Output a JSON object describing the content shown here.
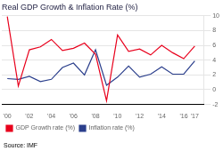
{
  "chart_data": {
    "type": "line",
    "title": "Real GDP Growth & Inflation Rate (%)",
    "x": [
      2000,
      2001,
      2002,
      2003,
      2004,
      2005,
      2006,
      2007,
      2008,
      2009,
      2010,
      2011,
      2012,
      2013,
      2014,
      2015,
      2016,
      2017
    ],
    "series": [
      {
        "name": "GDP Growth rate (%)",
        "color": "#e8001c",
        "values": [
          9.9,
          0.5,
          5.4,
          5.8,
          6.8,
          5.3,
          5.6,
          6.3,
          4.8,
          -1.5,
          7.4,
          5.2,
          5.5,
          4.7,
          6.0,
          5.0,
          4.2,
          5.9
        ]
      },
      {
        "name": "Inflation rate (%)",
        "color": "#2b3f8c",
        "values": [
          1.5,
          1.4,
          1.8,
          1.1,
          1.4,
          3.0,
          3.6,
          2.0,
          5.4,
          0.6,
          1.7,
          3.2,
          1.7,
          2.1,
          3.1,
          2.1,
          2.1,
          3.9
        ]
      }
    ],
    "xlim": [
      1999.5,
      2017.8
    ],
    "xticks": [
      {
        "value": 2000,
        "label": "'00"
      },
      {
        "value": 2002,
        "label": "'02"
      },
      {
        "value": 2004,
        "label": "'04"
      },
      {
        "value": 2006,
        "label": "'06"
      },
      {
        "value": 2008,
        "label": "'08"
      },
      {
        "value": 2010,
        "label": "'10"
      },
      {
        "value": 2012,
        "label": "'12"
      },
      {
        "value": 2014,
        "label": "'14"
      },
      {
        "value": 2016,
        "label": "'16"
      },
      {
        "value": 2017,
        "label": "'17"
      }
    ],
    "ylim": [
      -2,
      10
    ],
    "yticks": [
      -2,
      0,
      2,
      4,
      6,
      8,
      10
    ],
    "grid": "y",
    "legend": "lower left",
    "annotations": [
      "Source: IMF"
    ]
  }
}
